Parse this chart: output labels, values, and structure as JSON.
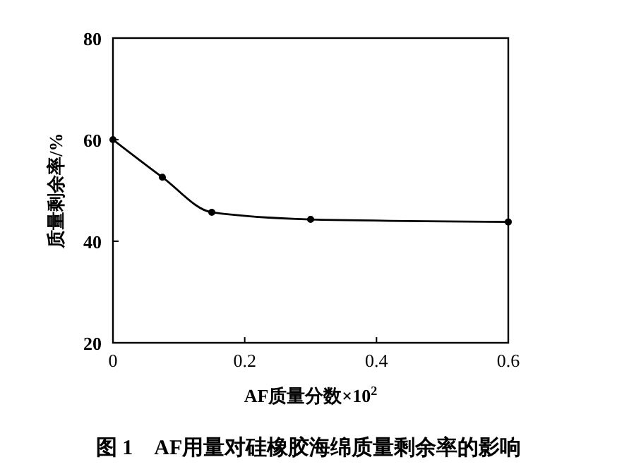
{
  "chart_data": {
    "type": "line",
    "title": "图 1　AF用量对硅橡胶海绵质量剩余率的影响",
    "xlabel": "AF质量分数×10$^{2}$",
    "ylabel": "质量剩余率/%",
    "x": [
      0,
      0.075,
      0.15,
      0.3,
      0.6
    ],
    "series": [
      {
        "color": "#000000",
        "values": [
          60,
          52.6,
          45.7,
          44.3,
          43.8
        ]
      }
    ],
    "xlim": [
      0,
      0.6
    ],
    "xticks": [
      0,
      0.2,
      0.4,
      0.6
    ],
    "ylim": [
      20,
      80
    ],
    "yticks": [
      20,
      40,
      60,
      80
    ],
    "grid": false,
    "marker": "circle",
    "line_style": "solid"
  }
}
